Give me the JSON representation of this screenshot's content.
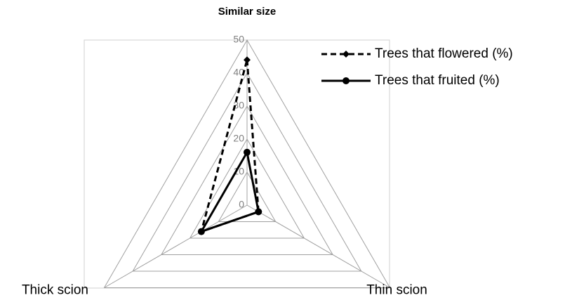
{
  "chart_data": {
    "type": "radar",
    "title": "Similar size",
    "categories": [
      "Similar size",
      "Thin scion",
      "Thick scion"
    ],
    "series": [
      {
        "name": "Trees that flowered (%)",
        "color": "#000000",
        "dash": true,
        "marker": "diamond",
        "values": [
          44,
          4,
          16
        ]
      },
      {
        "name": "Trees that fruited (%)",
        "color": "#000000",
        "dash": false,
        "marker": "circle",
        "values": [
          16,
          4,
          16
        ]
      }
    ],
    "ylim": [
      0,
      50
    ],
    "yticks": [
      0,
      10,
      20,
      30,
      40,
      50
    ],
    "grid": true,
    "legend": "top-right"
  }
}
